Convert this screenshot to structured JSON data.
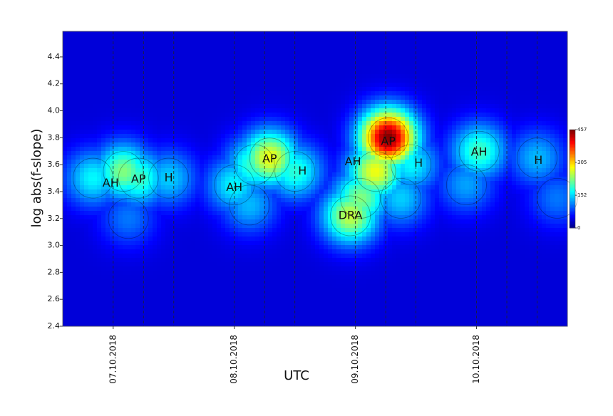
{
  "chart_data": {
    "type": "density",
    "xlabel": "UTC",
    "ylabel": "log abs(f-slope)",
    "xlim": [
      "2018-10-06T14:00",
      "2018-10-10T18:00"
    ],
    "xticks": [
      {
        "value": "2018-10-07T00:00",
        "label": "07.10.2018"
      },
      {
        "value": "2018-10-08T00:00",
        "label": "08.10.2018"
      },
      {
        "value": "2018-10-09T00:00",
        "label": "09.10.2018"
      },
      {
        "value": "2018-10-10T00:00",
        "label": "10.10.2018"
      }
    ],
    "ylim": [
      2.4,
      4.59
    ],
    "yticks": [
      {
        "value": 2.4,
        "label": "2.4"
      },
      {
        "value": 2.6,
        "label": "2.6"
      },
      {
        "value": 2.8,
        "label": "2.8"
      },
      {
        "value": 3.0,
        "label": "3.0"
      },
      {
        "value": 3.2,
        "label": "3.2"
      },
      {
        "value": 3.4,
        "label": "3.4"
      },
      {
        "value": 3.6,
        "label": "3.6"
      },
      {
        "value": 3.8,
        "label": "3.8"
      },
      {
        "value": 4.0,
        "label": "4.0"
      },
      {
        "value": 4.2,
        "label": "4.2"
      },
      {
        "value": 4.4,
        "label": "4.4"
      }
    ],
    "vlines": [
      "2018-10-07T00:00",
      "2018-10-07T06:00",
      "2018-10-07T12:00",
      "2018-10-08T00:00",
      "2018-10-08T06:00",
      "2018-10-08T12:00",
      "2018-10-09T00:00",
      "2018-10-09T06:00",
      "2018-10-09T12:00",
      "2018-10-10T00:00",
      "2018-10-10T06:00",
      "2018-10-10T12:00"
    ],
    "background": 40,
    "hotspots": {
      "x": [
        "2018-10-06T20:00",
        "2018-10-07T02:00",
        "2018-10-07T05:00",
        "2018-10-07T11:00",
        "2018-10-07T03:00",
        "2018-10-08T00:00",
        "2018-10-08T04:00",
        "2018-10-08T07:00",
        "2018-10-08T12:00",
        "2018-10-08T03:00",
        "2018-10-09T06:30",
        "2018-10-09T04:00",
        "2018-10-09T01:00",
        "2018-10-08T23:00",
        "2018-10-09T11:00",
        "2018-10-09T09:00",
        "2018-10-10T00:30",
        "2018-10-09T22:00",
        "2018-10-10T12:00",
        "2018-10-10T16:00"
      ],
      "y": [
        3.5,
        3.55,
        3.5,
        3.5,
        3.2,
        3.45,
        3.6,
        3.65,
        3.55,
        3.3,
        3.8,
        3.55,
        3.35,
        3.22,
        3.6,
        3.35,
        3.7,
        3.45,
        3.65,
        3.35
      ],
      "values": [
        170,
        230,
        200,
        150,
        110,
        170,
        200,
        280,
        190,
        140,
        457,
        280,
        230,
        260,
        170,
        150,
        200,
        130,
        140,
        110
      ]
    },
    "annotations": [
      {
        "text": "AH",
        "x": "2018-10-06T23:30",
        "y": 3.46
      },
      {
        "text": "AP",
        "x": "2018-10-07T05:00",
        "y": 3.49
      },
      {
        "text": "H",
        "x": "2018-10-07T11:00",
        "y": 3.5
      },
      {
        "text": "AH",
        "x": "2018-10-08T00:00",
        "y": 3.43
      },
      {
        "text": "AP",
        "x": "2018-10-08T07:00",
        "y": 3.64
      },
      {
        "text": "H",
        "x": "2018-10-08T13:30",
        "y": 3.55
      },
      {
        "text": "AH",
        "x": "2018-10-08T23:30",
        "y": 3.62
      },
      {
        "text": "DRA",
        "x": "2018-10-08T23:00",
        "y": 3.22
      },
      {
        "text": "AP",
        "x": "2018-10-09T06:30",
        "y": 3.77
      },
      {
        "text": "H",
        "x": "2018-10-09T12:30",
        "y": 3.61
      },
      {
        "text": "AH",
        "x": "2018-10-10T00:30",
        "y": 3.69
      },
      {
        "text": "H",
        "x": "2018-10-10T12:15",
        "y": 3.63
      }
    ],
    "colorbar": {
      "lim": [
        0,
        457
      ],
      "ticks": [
        0,
        152,
        305,
        457
      ]
    }
  }
}
